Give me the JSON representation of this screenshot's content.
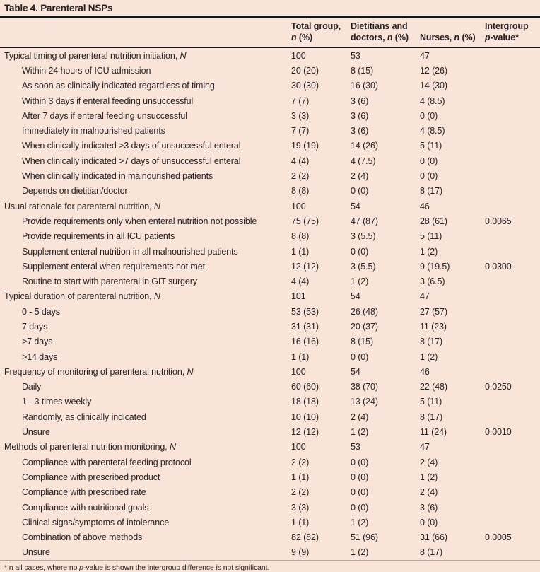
{
  "title": "Table 4. Parenteral NSPs",
  "table": {
    "columns": [
      {
        "id": "label",
        "line1": "",
        "line2": ""
      },
      {
        "id": "total",
        "line1": "Total group,",
        "line2": "n (%)"
      },
      {
        "id": "dietitians",
        "line1": "Dietitians and",
        "line2": "doctors, n (%)"
      },
      {
        "id": "nurses",
        "line1": "",
        "line2": "Nurses, n (%)"
      },
      {
        "id": "pvalue",
        "line1": "Intergroup",
        "line2": "p-value*"
      }
    ],
    "rows": [
      {
        "label": "Typical timing of parenteral nutrition initiation, N",
        "indent": false,
        "total": "100",
        "dietitians": "53",
        "nurses": "47",
        "p": ""
      },
      {
        "label": "Within 24 hours of ICU admission",
        "indent": true,
        "total": "20 (20)",
        "dietitians": "8 (15)",
        "nurses": "12 (26)",
        "p": ""
      },
      {
        "label": "As soon as clinically indicated regardless of timing",
        "indent": true,
        "total": "30 (30)",
        "dietitians": "16 (30)",
        "nurses": "14 (30)",
        "p": ""
      },
      {
        "label": "Within 3 days if enteral feeding unsuccessful",
        "indent": true,
        "total": "7 (7)",
        "dietitians": "3 (6)",
        "nurses": "4 (8.5)",
        "p": ""
      },
      {
        "label": "After 7 days if enteral feeding unsuccessful",
        "indent": true,
        "total": "3 (3)",
        "dietitians": "3 (6)",
        "nurses": "0 (0)",
        "p": ""
      },
      {
        "label": "Immediately in malnourished patients",
        "indent": true,
        "total": "7 (7)",
        "dietitians": "3 (6)",
        "nurses": "4 (8.5)",
        "p": ""
      },
      {
        "label": "When clinically indicated >3 days of unsuccessful enteral",
        "indent": true,
        "total": "19 (19)",
        "dietitians": "14 (26)",
        "nurses": "5 (11)",
        "p": ""
      },
      {
        "label": "When clinically indicated >7 days of unsuccessful enteral",
        "indent": true,
        "total": "4 (4)",
        "dietitians": "4 (7.5)",
        "nurses": "0 (0)",
        "p": ""
      },
      {
        "label": "When clinically indicated in malnourished patients",
        "indent": true,
        "total": "2 (2)",
        "dietitians": "2 (4)",
        "nurses": "0 (0)",
        "p": ""
      },
      {
        "label": "Depends on dietitian/doctor",
        "indent": true,
        "total": "8 (8)",
        "dietitians": "0 (0)",
        "nurses": "8 (17)",
        "p": ""
      },
      {
        "label": "Usual rationale for parenteral nutrition, N",
        "indent": false,
        "total": "100",
        "dietitians": "54",
        "nurses": "46",
        "p": ""
      },
      {
        "label": "Provide requirements only when enteral nutrition not possible",
        "indent": true,
        "total": "75 (75)",
        "dietitians": "47 (87)",
        "nurses": "28 (61)",
        "p": "0.0065"
      },
      {
        "label": "Provide requirements in all ICU patients",
        "indent": true,
        "total": "8 (8)",
        "dietitians": "3 (5.5)",
        "nurses": "5 (11)",
        "p": ""
      },
      {
        "label": "Supplement enteral nutrition in all malnourished patients",
        "indent": true,
        "total": "1 (1)",
        "dietitians": "0 (0)",
        "nurses": "1 (2)",
        "p": ""
      },
      {
        "label": "Supplement enteral when requirements not met",
        "indent": true,
        "total": "12 (12)",
        "dietitians": "3 (5.5)",
        "nurses": "9 (19.5)",
        "p": "0.0300"
      },
      {
        "label": "Routine to start with parenteral in GIT surgery",
        "indent": true,
        "total": "4 (4)",
        "dietitians": "1 (2)",
        "nurses": "3 (6.5)",
        "p": ""
      },
      {
        "label": "Typical duration of parenteral nutrition, N",
        "indent": false,
        "total": "101",
        "dietitians": "54",
        "nurses": "47",
        "p": ""
      },
      {
        "label": "0 - 5 days",
        "indent": true,
        "total": "53 (53)",
        "dietitians": "26 (48)",
        "nurses": "27 (57)",
        "p": ""
      },
      {
        "label": "7 days",
        "indent": true,
        "total": "31 (31)",
        "dietitians": "20 (37)",
        "nurses": "11 (23)",
        "p": ""
      },
      {
        "label": ">7 days",
        "indent": true,
        "total": "16 (16)",
        "dietitians": "8 (15)",
        "nurses": "8 (17)",
        "p": ""
      },
      {
        "label": ">14 days",
        "indent": true,
        "total": "1 (1)",
        "dietitians": "0 (0)",
        "nurses": "1 (2)",
        "p": ""
      },
      {
        "label": "Frequency of monitoring of parenteral nutrition, N",
        "indent": false,
        "total": "100",
        "dietitians": "54",
        "nurses": "46",
        "p": ""
      },
      {
        "label": "Daily",
        "indent": true,
        "total": "60 (60)",
        "dietitians": "38 (70)",
        "nurses": "22 (48)",
        "p": "0.0250"
      },
      {
        "label": "1 - 3 times weekly",
        "indent": true,
        "total": "18 (18)",
        "dietitians": "13 (24)",
        "nurses": "5 (11)",
        "p": ""
      },
      {
        "label": "Randomly, as clinically indicated",
        "indent": true,
        "total": "10 (10)",
        "dietitians": "2 (4)",
        "nurses": "8 (17)",
        "p": ""
      },
      {
        "label": "Unsure",
        "indent": true,
        "total": "12 (12)",
        "dietitians": "1 (2)",
        "nurses": "11 (24)",
        "p": "0.0010"
      },
      {
        "label": "Methods of parenteral nutrition monitoring, N",
        "indent": false,
        "total": "100",
        "dietitians": "53",
        "nurses": "47",
        "p": ""
      },
      {
        "label": "Compliance with parenteral feeding protocol",
        "indent": true,
        "total": "2 (2)",
        "dietitians": "0 (0)",
        "nurses": "2 (4)",
        "p": ""
      },
      {
        "label": "Compliance with prescribed product",
        "indent": true,
        "total": "1 (1)",
        "dietitians": "0 (0)",
        "nurses": "1 (2)",
        "p": ""
      },
      {
        "label": "Compliance with prescribed rate",
        "indent": true,
        "total": "2 (2)",
        "dietitians": "0 (0)",
        "nurses": "2 (4)",
        "p": ""
      },
      {
        "label": "Compliance with nutritional goals",
        "indent": true,
        "total": "3 (3)",
        "dietitians": "0 (0)",
        "nurses": "3 (6)",
        "p": ""
      },
      {
        "label": "Clinical signs/symptoms of intolerance",
        "indent": true,
        "total": "1 (1)",
        "dietitians": "1 (2)",
        "nurses": "0 (0)",
        "p": ""
      },
      {
        "label": "Combination of above methods",
        "indent": true,
        "total": "82 (82)",
        "dietitians": "51 (96)",
        "nurses": "31 (66)",
        "p": "0.0005"
      },
      {
        "label": "Unsure",
        "indent": true,
        "total": "9 (9)",
        "dietitians": "1 (2)",
        "nurses": "8 (17)",
        "p": ""
      }
    ]
  },
  "footnote": "*In all cases, where no p-value is shown the intergroup difference is not significant.",
  "colors": {
    "background": "#f8e4d9",
    "text": "#29211f",
    "rule": "#141414",
    "footnote_rule": "#b5a79e"
  }
}
